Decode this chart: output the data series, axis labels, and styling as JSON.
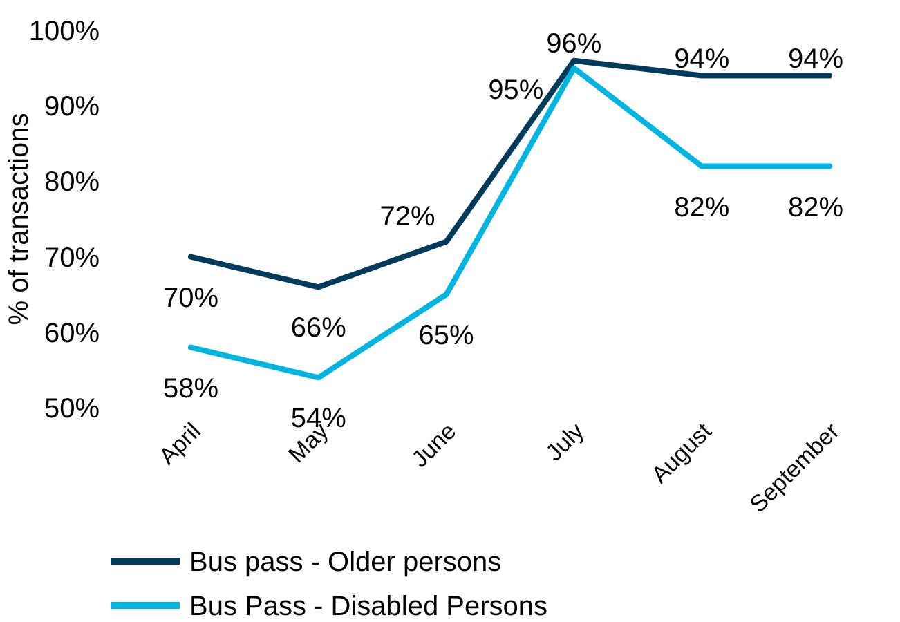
{
  "chart_data": {
    "type": "line",
    "ylabel": "% of transactions",
    "categories": [
      "April",
      "May",
      "June",
      "July",
      "August",
      "September"
    ],
    "series": [
      {
        "name": "Bus pass - Older persons",
        "color": "#003a5d",
        "values": [
          70,
          66,
          72,
          96,
          94,
          94
        ],
        "value_labels": [
          "70%",
          "66%",
          "72%",
          "96%",
          "94%",
          "94%"
        ]
      },
      {
        "name": "Bus Pass - Disabled Persons",
        "color": "#00b5e2",
        "values": [
          58,
          54,
          65,
          95,
          82,
          82
        ],
        "value_labels": [
          "58%",
          "54%",
          "65%",
          "95%",
          "82%",
          "82%"
        ]
      }
    ],
    "ylim": [
      50,
      100
    ],
    "yticks": [
      {
        "value": 50,
        "label": "50%"
      },
      {
        "value": 60,
        "label": "60%"
      },
      {
        "value": 70,
        "label": "70%"
      },
      {
        "value": 80,
        "label": "80%"
      },
      {
        "value": 90,
        "label": "90%"
      },
      {
        "value": 100,
        "label": "100%"
      }
    ],
    "grid": false,
    "legend": "bottom",
    "marker": "none",
    "line_style": "solid"
  }
}
